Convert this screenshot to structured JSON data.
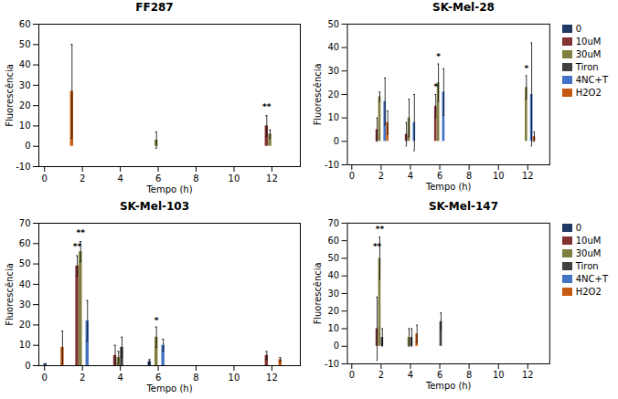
{
  "chart_data": [
    {
      "type": "bar",
      "title": "FF287",
      "x": [
        1,
        6,
        12
      ],
      "series": [
        {
          "name": "0",
          "color": "#1F3864",
          "values": [
            0,
            0,
            0
          ],
          "errors": [
            0,
            0,
            0
          ]
        },
        {
          "name": "10uM",
          "color": "#833232",
          "values": [
            0,
            0,
            10
          ],
          "errors": [
            0,
            0,
            5
          ]
        },
        {
          "name": "30uM",
          "color": "#7F7F3F",
          "values": [
            0,
            3,
            6
          ],
          "errors": [
            0,
            4,
            2
          ]
        },
        {
          "name": "Tiron",
          "color": "#404040",
          "values": [
            0,
            0,
            0
          ],
          "errors": [
            0,
            0,
            0
          ]
        },
        {
          "name": "4NC+T",
          "color": "#4472C4",
          "values": [
            0,
            0,
            0
          ],
          "errors": [
            0,
            0,
            0
          ]
        },
        {
          "name": "H2O2",
          "color": "#C55A11",
          "values": [
            27,
            0,
            0
          ],
          "errors": [
            23,
            0,
            0
          ]
        }
      ],
      "annotations": [
        {
          "text": "**",
          "x": 12,
          "series": "10uM",
          "y": 18
        }
      ],
      "xlim": [
        -0.3,
        13.5
      ],
      "xticks": [
        0,
        2,
        4,
        6,
        8,
        10,
        12
      ],
      "ylim": [
        -10,
        60
      ],
      "yticks": [
        -10,
        0,
        10,
        20,
        30,
        40,
        50,
        60
      ],
      "xlabel": "Tempo (h)",
      "ylabel": "Fluorescência"
    },
    {
      "type": "bar",
      "title": "SK-Mel-28",
      "x": [
        2,
        4,
        6,
        12
      ],
      "series": [
        {
          "name": "0",
          "color": "#1F3864",
          "values": [
            0,
            0,
            0,
            0
          ],
          "errors": [
            0,
            0,
            0,
            0
          ]
        },
        {
          "name": "10uM",
          "color": "#833232",
          "values": [
            5,
            3,
            15,
            0
          ],
          "errors": [
            5,
            5,
            5,
            0
          ]
        },
        {
          "name": "30uM",
          "color": "#7F7F3F",
          "values": [
            19,
            10,
            25,
            23
          ],
          "errors": [
            2,
            8,
            8,
            5
          ]
        },
        {
          "name": "Tiron",
          "color": "#404040",
          "values": [
            0,
            0,
            0,
            0
          ],
          "errors": [
            0,
            0,
            0,
            0
          ]
        },
        {
          "name": "4NC+T",
          "color": "#4472C4",
          "values": [
            17,
            8,
            21,
            20
          ],
          "errors": [
            10,
            12,
            10,
            22
          ]
        },
        {
          "name": "H2O2",
          "color": "#C55A11",
          "values": [
            8,
            0,
            0,
            2
          ],
          "errors": [
            5,
            0,
            0,
            2
          ]
        }
      ],
      "annotations": [
        {
          "text": "*",
          "x": 6,
          "series": "30uM",
          "y": 35
        },
        {
          "text": "*",
          "x": 6,
          "series": "10uM",
          "y": 22
        },
        {
          "text": "*",
          "x": 12,
          "series": "30uM",
          "y": 30
        }
      ],
      "xlim": [
        -0.3,
        13.5
      ],
      "xticks": [
        0,
        2,
        4,
        6,
        8,
        10,
        12
      ],
      "ylim": [
        -10,
        50
      ],
      "yticks": [
        -10,
        0,
        10,
        20,
        30,
        40,
        50
      ],
      "xlabel": "Tempo (h)",
      "ylabel": "Fluorescência",
      "legend": "right"
    },
    {
      "type": "bar",
      "title": "SK-Mel-103",
      "x": [
        0.5,
        2,
        4,
        6,
        12
      ],
      "series": [
        {
          "name": "0",
          "color": "#1F3864",
          "values": [
            1,
            0,
            0,
            2,
            0
          ],
          "errors": [
            0,
            0,
            0,
            1,
            0
          ]
        },
        {
          "name": "10uM",
          "color": "#833232",
          "values": [
            0,
            49,
            5,
            0,
            5
          ],
          "errors": [
            0,
            5,
            5,
            0,
            2
          ]
        },
        {
          "name": "30uM",
          "color": "#7F7F3F",
          "values": [
            0,
            56,
            4,
            14,
            0
          ],
          "errors": [
            0,
            5,
            3,
            5,
            0
          ]
        },
        {
          "name": "Tiron",
          "color": "#404040",
          "values": [
            0,
            0,
            9,
            0,
            0
          ],
          "errors": [
            0,
            0,
            5,
            0,
            0
          ]
        },
        {
          "name": "4NC+T",
          "color": "#4472C4",
          "values": [
            0,
            22,
            0,
            10,
            0
          ],
          "errors": [
            0,
            10,
            0,
            3,
            0
          ]
        },
        {
          "name": "H2O2",
          "color": "#C55A11",
          "values": [
            9,
            0,
            0,
            0,
            3
          ],
          "errors": [
            8,
            0,
            0,
            0,
            1
          ]
        }
      ],
      "annotations": [
        {
          "text": "**",
          "x": 2,
          "series": "10uM",
          "y": 57
        },
        {
          "text": "**",
          "x": 2,
          "series": "30uM",
          "y": 64
        },
        {
          "text": "*",
          "x": 6,
          "series": "30uM",
          "y": 21
        }
      ],
      "xlim": [
        -0.3,
        13.5
      ],
      "xticks": [
        0,
        2,
        4,
        6,
        8,
        10,
        12
      ],
      "ylim": [
        0,
        70
      ],
      "yticks": [
        0,
        10,
        20,
        30,
        40,
        50,
        60,
        70
      ],
      "xlabel": "Tempo (h)",
      "ylabel": "Fluorescência"
    },
    {
      "type": "bar",
      "title": "SK-Mel-147",
      "x": [
        0.5,
        2,
        4,
        6,
        12
      ],
      "series": [
        {
          "name": "0",
          "color": "#1F3864",
          "values": [
            0,
            0,
            0,
            0,
            0
          ],
          "errors": [
            0,
            0,
            0,
            0,
            0
          ]
        },
        {
          "name": "10uM",
          "color": "#833232",
          "values": [
            0,
            10,
            0,
            0,
            0
          ],
          "errors": [
            0,
            18,
            0,
            0,
            0
          ]
        },
        {
          "name": "30uM",
          "color": "#7F7F3F",
          "values": [
            0,
            50,
            5,
            0,
            0
          ],
          "errors": [
            0,
            12,
            5,
            0,
            0
          ]
        },
        {
          "name": "Tiron",
          "color": "#404040",
          "values": [
            0,
            5,
            5,
            14,
            0
          ],
          "errors": [
            0,
            5,
            5,
            5,
            0
          ]
        },
        {
          "name": "4NC+T",
          "color": "#4472C4",
          "values": [
            0,
            0,
            0,
            0,
            0
          ],
          "errors": [
            0,
            0,
            0,
            0,
            0
          ]
        },
        {
          "name": "H2O2",
          "color": "#C55A11",
          "values": [
            0,
            0,
            7,
            0,
            0
          ],
          "errors": [
            0,
            0,
            5,
            0,
            0
          ]
        }
      ],
      "annotations": [
        {
          "text": "**",
          "x": 2,
          "series": "30uM",
          "y": 65
        },
        {
          "text": "**",
          "x": 2,
          "series": "10uM",
          "y": 55
        }
      ],
      "xlim": [
        -0.3,
        13.5
      ],
      "xticks": [
        0,
        2,
        4,
        6,
        8,
        10,
        12
      ],
      "ylim": [
        -10,
        70
      ],
      "yticks": [
        -10,
        0,
        10,
        20,
        30,
        40,
        50,
        60,
        70
      ],
      "xlabel": "Tempo (h)",
      "ylabel": "Fluorescência",
      "legend": "right"
    }
  ]
}
